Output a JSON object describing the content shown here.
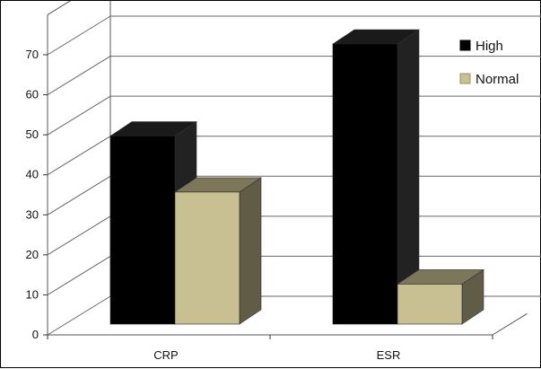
{
  "chart_data": {
    "type": "bar",
    "categories": [
      "CRP",
      "ESR"
    ],
    "series": [
      {
        "name": "High",
        "values": [
          47,
          70
        ],
        "color": "#000000"
      },
      {
        "name": "Normal",
        "values": [
          33,
          10
        ],
        "color": "#c8bf92"
      }
    ],
    "y_ticks": [
      0,
      10,
      20,
      30,
      40,
      50,
      60,
      70
    ],
    "ylim": [
      0,
      80
    ],
    "grid": true,
    "legend": "top-right",
    "style": "3d-column"
  }
}
